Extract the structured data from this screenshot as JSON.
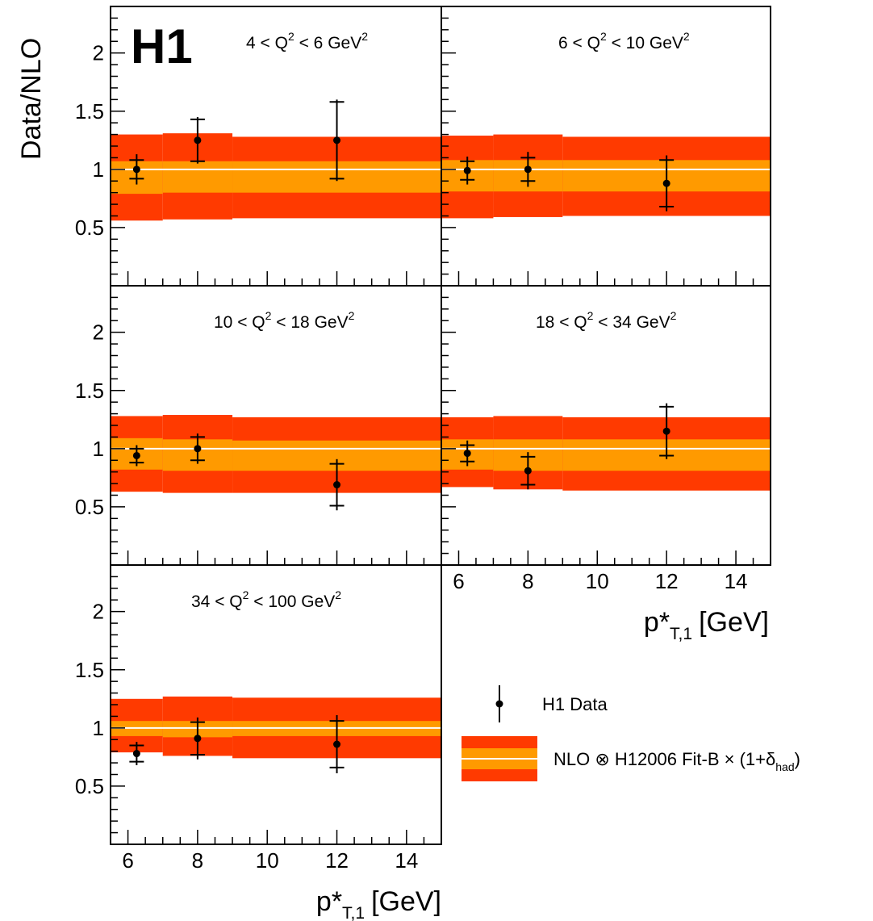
{
  "logo": "H1",
  "y_axis_title": "Data/NLO",
  "x_axis_title": {
    "main": "p*",
    "sub": "T,1",
    "unit": "[GeV]"
  },
  "legend": {
    "data_label": "H1 Data",
    "band_label": {
      "prefix": "NLO ⊗ H12006 Fit-B × (1+δ",
      "sub": "had",
      "suffix": ")"
    }
  },
  "colors": {
    "outer_band": "#ff3a00",
    "inner_band": "#ff9a00",
    "central_line": "#ffffff",
    "points": "#000000"
  },
  "chart_data": [
    {
      "type": "scatter",
      "title": {
        "pre": "4 < Q",
        "sup1": "2",
        "mid": " < 6 GeV",
        "sup2": "2"
      },
      "xlim": [
        5.5,
        15
      ],
      "ylim": [
        0,
        2.4
      ],
      "x_ticks": [
        "6",
        "8",
        "10",
        "12",
        "14"
      ],
      "y_ticks": [
        "0.5",
        "1",
        "1.5",
        "2"
      ],
      "series": [
        {
          "x": [
            6.25,
            8,
            12
          ],
          "y": [
            1.0,
            1.25,
            1.25
          ],
          "stat": [
            0.08,
            0.18,
            0.33
          ],
          "total": [
            0.13,
            0.2,
            0.35
          ]
        }
      ],
      "band_bins": [
        [
          5.5,
          7
        ],
        [
          7,
          9
        ],
        [
          9,
          15
        ]
      ],
      "band_inner": [
        [
          0.79,
          1.07
        ],
        [
          0.8,
          1.07
        ],
        [
          0.8,
          1.07
        ]
      ],
      "band_outer": [
        [
          0.56,
          1.3
        ],
        [
          0.57,
          1.31
        ],
        [
          0.58,
          1.28
        ]
      ]
    },
    {
      "type": "scatter",
      "title": {
        "pre": "6 < Q",
        "sup1": "2",
        "mid": " < 10 GeV",
        "sup2": "2"
      },
      "xlim": [
        5.5,
        15
      ],
      "ylim": [
        0,
        2.4
      ],
      "x_ticks": [
        "6",
        "8",
        "10",
        "12",
        "14"
      ],
      "y_ticks": [
        "0.5",
        "1",
        "1.5",
        "2"
      ],
      "series": [
        {
          "x": [
            6.25,
            8,
            12
          ],
          "y": [
            0.99,
            1.0,
            0.88
          ],
          "stat": [
            0.08,
            0.1,
            0.2
          ],
          "total": [
            0.12,
            0.15,
            0.24
          ]
        }
      ],
      "band_bins": [
        [
          5.5,
          7
        ],
        [
          7,
          9
        ],
        [
          9,
          15
        ]
      ],
      "band_inner": [
        [
          0.81,
          1.08
        ],
        [
          0.81,
          1.08
        ],
        [
          0.81,
          1.08
        ]
      ],
      "band_outer": [
        [
          0.58,
          1.29
        ],
        [
          0.59,
          1.3
        ],
        [
          0.6,
          1.28
        ]
      ]
    },
    {
      "type": "scatter",
      "title": {
        "pre": "10 < Q",
        "sup1": "2",
        "mid": " < 18 GeV",
        "sup2": "2"
      },
      "xlim": [
        5.5,
        15
      ],
      "ylim": [
        0,
        2.4
      ],
      "x_ticks": [
        "6",
        "8",
        "10",
        "12",
        "14"
      ],
      "y_ticks": [
        "0.5",
        "1",
        "1.5",
        "2"
      ],
      "series": [
        {
          "x": [
            6.25,
            8,
            12
          ],
          "y": [
            0.94,
            1.0,
            0.69
          ],
          "stat": [
            0.06,
            0.1,
            0.18
          ],
          "total": [
            0.09,
            0.13,
            0.22
          ]
        }
      ],
      "band_bins": [
        [
          5.5,
          7
        ],
        [
          7,
          9
        ],
        [
          9,
          15
        ]
      ],
      "band_inner": [
        [
          0.82,
          1.09
        ],
        [
          0.81,
          1.08
        ],
        [
          0.81,
          1.07
        ]
      ],
      "band_outer": [
        [
          0.63,
          1.28
        ],
        [
          0.62,
          1.29
        ],
        [
          0.62,
          1.27
        ]
      ]
    },
    {
      "type": "scatter",
      "title": {
        "pre": "18 < Q",
        "sup1": "2",
        "mid": " < 34 GeV",
        "sup2": "2"
      },
      "xlim": [
        5.5,
        15
      ],
      "ylim": [
        0,
        2.4
      ],
      "x_ticks": [
        "6",
        "8",
        "10",
        "12",
        "14"
      ],
      "y_ticks": [
        "0.5",
        "1",
        "1.5",
        "2"
      ],
      "series": [
        {
          "x": [
            6.25,
            8,
            12
          ],
          "y": [
            0.96,
            0.81,
            1.15
          ],
          "stat": [
            0.07,
            0.12,
            0.21
          ],
          "total": [
            0.11,
            0.16,
            0.24
          ]
        }
      ],
      "band_bins": [
        [
          5.5,
          7
        ],
        [
          7,
          9
        ],
        [
          9,
          15
        ]
      ],
      "band_inner": [
        [
          0.82,
          1.08
        ],
        [
          0.81,
          1.08
        ],
        [
          0.81,
          1.08
        ]
      ],
      "band_outer": [
        [
          0.67,
          1.27
        ],
        [
          0.65,
          1.28
        ],
        [
          0.64,
          1.27
        ]
      ]
    },
    {
      "type": "scatter",
      "title": {
        "pre": "34 < Q",
        "sup1": "2",
        "mid": " < 100 GeV",
        "sup2": "2"
      },
      "xlim": [
        5.5,
        15
      ],
      "ylim": [
        0,
        2.4
      ],
      "x_ticks": [
        "6",
        "8",
        "10",
        "12",
        "14"
      ],
      "y_ticks": [
        "0.5",
        "1",
        "1.5",
        "2"
      ],
      "series": [
        {
          "x": [
            6.25,
            8,
            12
          ],
          "y": [
            0.78,
            0.91,
            0.86
          ],
          "stat": [
            0.07,
            0.14,
            0.2
          ],
          "total": [
            0.1,
            0.18,
            0.25
          ]
        }
      ],
      "band_bins": [
        [
          5.5,
          7
        ],
        [
          7,
          9
        ],
        [
          9,
          15
        ]
      ],
      "band_inner": [
        [
          0.93,
          1.06
        ],
        [
          0.92,
          1.06
        ],
        [
          0.93,
          1.06
        ]
      ],
      "band_outer": [
        [
          0.79,
          1.25
        ],
        [
          0.76,
          1.27
        ],
        [
          0.74,
          1.26
        ]
      ]
    }
  ]
}
